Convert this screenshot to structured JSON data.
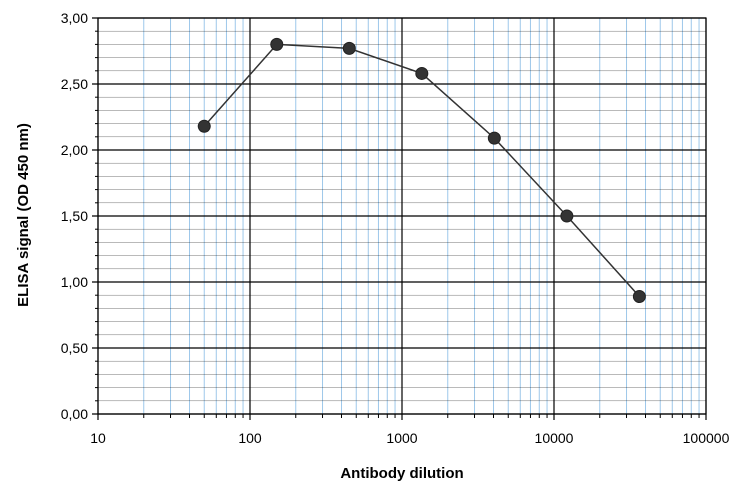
{
  "chart_data": {
    "type": "line",
    "title": "",
    "xlabel": "Antibody dilution",
    "ylabel": "ELISA signal (OD 450 nm)",
    "x_scale": "log",
    "xlim": [
      10,
      100000
    ],
    "ylim": [
      0,
      3
    ],
    "x_ticks": [
      10,
      100,
      1000,
      10000,
      100000
    ],
    "x_tick_labels": [
      "10",
      "100",
      "1000",
      "10000",
      "100000"
    ],
    "y_ticks": [
      0,
      0.5,
      1.0,
      1.5,
      2.0,
      2.5,
      3.0
    ],
    "y_tick_labels": [
      "0,00",
      "0,50",
      "1,00",
      "1,50",
      "2,00",
      "2,50",
      "3,00"
    ],
    "y_minor_step": 0.1,
    "grid": true,
    "legend": "none",
    "series": [
      {
        "x": [
          50,
          150,
          450,
          1350,
          4050,
          12150,
          36450
        ],
        "y": [
          2.18,
          2.8,
          2.77,
          2.58,
          2.09,
          1.5,
          0.89
        ]
      }
    ],
    "colors": {
      "minor_vertical_grid": "#9ec8ea",
      "major_grid": "#000000",
      "minor_horizontal_grid": "#000000",
      "line": "#333333",
      "marker": "#333333"
    }
  }
}
